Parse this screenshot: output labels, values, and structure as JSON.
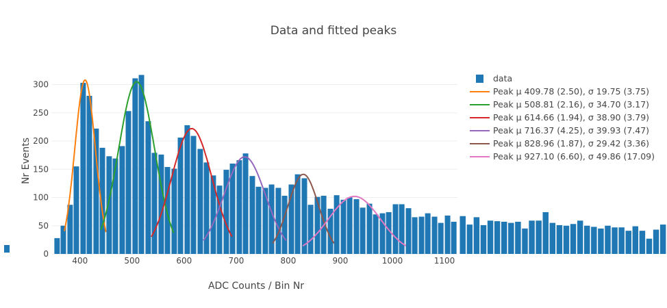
{
  "chart_data": {
    "type": "bar",
    "title": "Data and fitted peaks",
    "xlabel": "ADC Counts / Bin Nr",
    "ylabel": "Nr Events",
    "xlim": [
      345,
      1125
    ],
    "ylim": [
      0,
      320
    ],
    "xticks": [
      400,
      500,
      600,
      700,
      800,
      900,
      1000,
      1100
    ],
    "yticks": [
      0,
      50,
      100,
      150,
      200,
      250,
      300
    ],
    "grid": true,
    "legend_position": "top-right",
    "bin_width": 12.5,
    "bar_color": "#1f77b4",
    "data_series_name": "data",
    "bins": [
      {
        "x": 356,
        "y": 28
      },
      {
        "x": 368,
        "y": 50
      },
      {
        "x": 381,
        "y": 87
      },
      {
        "x": 393,
        "y": 155
      },
      {
        "x": 406,
        "y": 303
      },
      {
        "x": 418,
        "y": 280
      },
      {
        "x": 431,
        "y": 222
      },
      {
        "x": 443,
        "y": 188
      },
      {
        "x": 456,
        "y": 173
      },
      {
        "x": 468,
        "y": 169
      },
      {
        "x": 481,
        "y": 191
      },
      {
        "x": 493,
        "y": 253
      },
      {
        "x": 506,
        "y": 311
      },
      {
        "x": 518,
        "y": 317
      },
      {
        "x": 531,
        "y": 235
      },
      {
        "x": 543,
        "y": 179
      },
      {
        "x": 556,
        "y": 176
      },
      {
        "x": 568,
        "y": 154
      },
      {
        "x": 581,
        "y": 151
      },
      {
        "x": 593,
        "y": 206
      },
      {
        "x": 606,
        "y": 228
      },
      {
        "x": 618,
        "y": 209
      },
      {
        "x": 631,
        "y": 186
      },
      {
        "x": 643,
        "y": 162
      },
      {
        "x": 656,
        "y": 139
      },
      {
        "x": 668,
        "y": 121
      },
      {
        "x": 681,
        "y": 149
      },
      {
        "x": 693,
        "y": 160
      },
      {
        "x": 706,
        "y": 166
      },
      {
        "x": 718,
        "y": 178
      },
      {
        "x": 731,
        "y": 138
      },
      {
        "x": 743,
        "y": 119
      },
      {
        "x": 756,
        "y": 117
      },
      {
        "x": 768,
        "y": 123
      },
      {
        "x": 781,
        "y": 117
      },
      {
        "x": 793,
        "y": 103
      },
      {
        "x": 806,
        "y": 123
      },
      {
        "x": 818,
        "y": 141
      },
      {
        "x": 831,
        "y": 134
      },
      {
        "x": 843,
        "y": 87
      },
      {
        "x": 856,
        "y": 101
      },
      {
        "x": 868,
        "y": 103
      },
      {
        "x": 881,
        "y": 80
      },
      {
        "x": 893,
        "y": 104
      },
      {
        "x": 906,
        "y": 96
      },
      {
        "x": 918,
        "y": 100
      },
      {
        "x": 931,
        "y": 97
      },
      {
        "x": 943,
        "y": 82
      },
      {
        "x": 956,
        "y": 89
      },
      {
        "x": 968,
        "y": 70
      },
      {
        "x": 981,
        "y": 72
      },
      {
        "x": 993,
        "y": 74
      },
      {
        "x": 1006,
        "y": 88
      },
      {
        "x": 1018,
        "y": 88
      },
      {
        "x": 1031,
        "y": 81
      },
      {
        "x": 1043,
        "y": 65
      },
      {
        "x": 1056,
        "y": 66
      },
      {
        "x": 1068,
        "y": 72
      },
      {
        "x": 1081,
        "y": 66
      },
      {
        "x": 1093,
        "y": 55
      },
      {
        "x": 1106,
        "y": 68
      },
      {
        "x": 1118,
        "y": 57
      }
    ],
    "overflow_bars": [
      67,
      52,
      65,
      51,
      59,
      58,
      57,
      55,
      57,
      45,
      59,
      59,
      74,
      55,
      51,
      50,
      53,
      59,
      50,
      48,
      45,
      50,
      47,
      47,
      41,
      49,
      41,
      27,
      43,
      52
    ],
    "series": [
      {
        "name": "Peak μ 409.78 (2.50), σ 19.75 (3.75)",
        "color": "#ff7f0e",
        "mu": 409.78,
        "sigma": 19.75,
        "amp": 308,
        "xrange": [
          370,
          450
        ]
      },
      {
        "name": "Peak μ 508.81 (2.16), σ 34.70 (3.17)",
        "color": "#2ca02c",
        "mu": 508.81,
        "sigma": 34.7,
        "amp": 305,
        "xrange": [
          440,
          580
        ]
      },
      {
        "name": "Peak μ 614.66 (1.94), σ 38.90 (3.79)",
        "color": "#d62728",
        "mu": 614.66,
        "sigma": 38.9,
        "amp": 222,
        "xrange": [
          537,
          692
        ]
      },
      {
        "name": "Peak μ 716.37 (4.25), σ 39.93 (7.47)",
        "color": "#9467bd",
        "mu": 716.37,
        "sigma": 39.93,
        "amp": 172,
        "xrange": [
          637,
          796
        ]
      },
      {
        "name": "Peak μ 828.96 (1.87), σ 29.42 (3.36)",
        "color": "#8c564b",
        "mu": 828.96,
        "sigma": 29.42,
        "amp": 141,
        "xrange": [
          770,
          888
        ]
      },
      {
        "name": "Peak μ 927.10 (6.60), σ 49.86 (17.09)",
        "color": "#e377c2",
        "mu": 927.1,
        "sigma": 49.86,
        "amp": 102,
        "xrange": [
          828,
          1026
        ]
      }
    ]
  }
}
